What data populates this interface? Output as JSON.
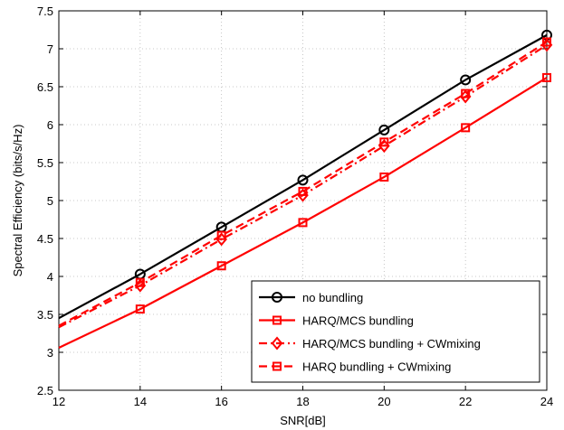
{
  "chart_data": {
    "type": "line",
    "xlabel": "SNR[dB]",
    "ylabel": "Spectral Efficiency (bits/s/Hz)",
    "xlim": [
      12,
      24
    ],
    "ylim": [
      2.5,
      7.5
    ],
    "xticks": [
      12,
      14,
      16,
      18,
      20,
      22,
      24
    ],
    "yticks": [
      2.5,
      3,
      3.5,
      4,
      4.5,
      5,
      5.5,
      6,
      6.5,
      7,
      7.5
    ],
    "grid": true,
    "legend_position": "bottom-right",
    "series": [
      {
        "name": "no bundling",
        "color": "#000000",
        "line_style": "solid",
        "marker": "circle",
        "x": [
          12,
          14,
          16,
          18,
          20,
          22,
          24
        ],
        "y": [
          3.45,
          4.03,
          4.65,
          5.27,
          5.93,
          6.59,
          7.18
        ]
      },
      {
        "name": "HARQ/MCS bundling",
        "color": "#ff0000",
        "line_style": "solid",
        "marker": "square",
        "x": [
          12,
          14,
          16,
          18,
          20,
          22,
          24
        ],
        "y": [
          3.06,
          3.57,
          4.14,
          4.71,
          5.31,
          5.96,
          6.62
        ]
      },
      {
        "name": "HARQ/MCS bundling + CWmixing",
        "color": "#ff0000",
        "line_style": "dashdot",
        "marker": "diamond",
        "x": [
          12,
          14,
          16,
          18,
          20,
          22,
          24
        ],
        "y": [
          3.33,
          3.88,
          4.49,
          5.07,
          5.72,
          6.37,
          7.05
        ]
      },
      {
        "name": "HARQ bundling + CWmixing",
        "color": "#ff0000",
        "line_style": "dashed",
        "marker": "square",
        "x": [
          12,
          14,
          16,
          18,
          20,
          22,
          24
        ],
        "y": [
          3.35,
          3.92,
          4.54,
          5.12,
          5.77,
          6.41,
          7.09
        ]
      }
    ]
  }
}
